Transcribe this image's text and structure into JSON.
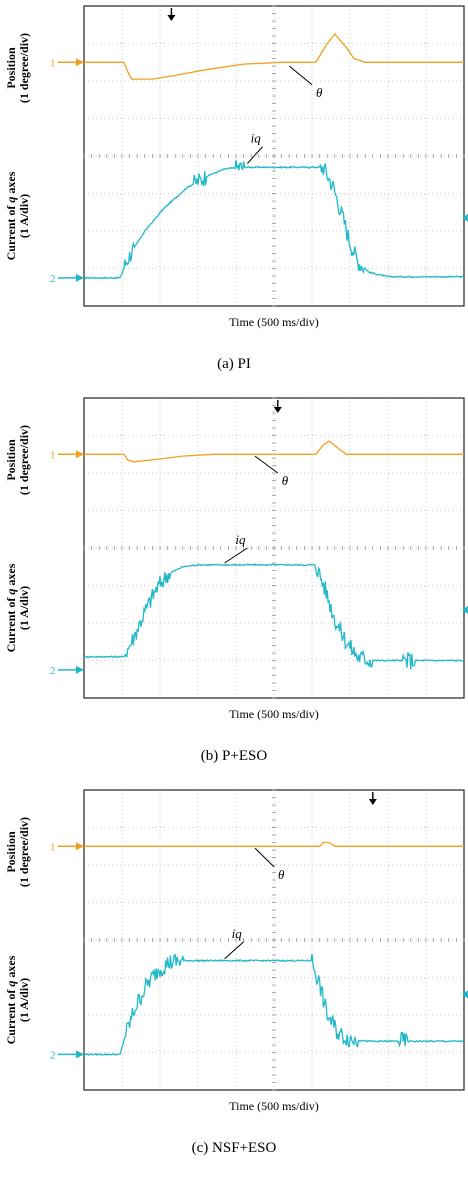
{
  "figure": {
    "chart_data": [
      {
        "type": "line",
        "caption": "(a)   PI",
        "xlabel": "Time (500 ms/div)",
        "ylabel_top": [
          "Position",
          "(1 degree/div)"
        ],
        "ylabel_bottom": [
          "Current of q axes",
          "(1 A/div)"
        ],
        "x_range_div": [
          0,
          10
        ],
        "y_range_div": [
          0,
          8
        ],
        "grid": true,
        "channel_markers": [
          "1",
          "2"
        ],
        "series": [
          {
            "name": "θ",
            "color": "#f0a020",
            "ch_level": 6.5,
            "points": [
              [
                0,
                6.5
              ],
              [
                1.05,
                6.5
              ],
              [
                1.15,
                6.25
              ],
              [
                1.25,
                6.05
              ],
              [
                1.8,
                6.05
              ],
              [
                2.4,
                6.15
              ],
              [
                3.2,
                6.3
              ],
              [
                4.2,
                6.45
              ],
              [
                5.2,
                6.5
              ],
              [
                6.1,
                6.5
              ],
              [
                6.4,
                7.0
              ],
              [
                6.6,
                7.25
              ],
              [
                6.9,
                6.9
              ],
              [
                7.1,
                6.6
              ],
              [
                7.4,
                6.5
              ],
              [
                10,
                6.5
              ]
            ]
          },
          {
            "name": "iq",
            "color": "#20b8c8",
            "ch_level": 0.75,
            "points": [
              [
                0,
                0.75
              ],
              [
                0.95,
                0.75
              ],
              [
                1.05,
                1.05
              ],
              [
                1.2,
                1.35
              ],
              [
                1.6,
                2.0
              ],
              [
                2.1,
                2.6
              ],
              [
                2.7,
                3.15
              ],
              [
                3.2,
                3.45
              ],
              [
                3.7,
                3.65
              ],
              [
                4.1,
                3.7
              ],
              [
                6.3,
                3.7
              ],
              [
                6.55,
                3.2
              ],
              [
                6.8,
                2.4
              ],
              [
                7.0,
                1.7
              ],
              [
                7.2,
                1.2
              ],
              [
                7.5,
                0.9
              ],
              [
                8.0,
                0.78
              ],
              [
                10,
                0.78
              ]
            ]
          }
        ],
        "annotations": [
          "θ",
          "iq"
        ]
      },
      {
        "type": "line",
        "caption": "(b)   P+ESO",
        "xlabel": "Time (500 ms/div)",
        "ylabel_top": [
          "Position",
          "(1 degree/div)"
        ],
        "ylabel_bottom": [
          "Current of q axes",
          "(1 A/div)"
        ],
        "x_range_div": [
          0,
          10
        ],
        "y_range_div": [
          0,
          8
        ],
        "grid": true,
        "channel_markers": [
          "1",
          "2"
        ],
        "series": [
          {
            "name": "θ",
            "color": "#f0a020",
            "ch_level": 6.5,
            "points": [
              [
                0,
                6.5
              ],
              [
                1.05,
                6.5
              ],
              [
                1.15,
                6.35
              ],
              [
                1.3,
                6.3
              ],
              [
                1.8,
                6.35
              ],
              [
                2.6,
                6.45
              ],
              [
                3.4,
                6.5
              ],
              [
                6.1,
                6.5
              ],
              [
                6.3,
                6.75
              ],
              [
                6.45,
                6.85
              ],
              [
                6.7,
                6.65
              ],
              [
                6.9,
                6.5
              ],
              [
                10,
                6.5
              ]
            ]
          },
          {
            "name": "iq",
            "color": "#20b8c8",
            "ch_level": 0.75,
            "points": [
              [
                0,
                1.1
              ],
              [
                1.05,
                1.1
              ],
              [
                1.3,
                1.6
              ],
              [
                1.6,
                2.3
              ],
              [
                1.9,
                2.9
              ],
              [
                2.2,
                3.3
              ],
              [
                2.6,
                3.5
              ],
              [
                3.0,
                3.55
              ],
              [
                6.1,
                3.55
              ],
              [
                6.35,
                2.9
              ],
              [
                6.6,
                2.1
              ],
              [
                6.9,
                1.5
              ],
              [
                7.2,
                1.1
              ],
              [
                7.6,
                1.0
              ],
              [
                10,
                1.0
              ]
            ]
          }
        ],
        "annotations": [
          "θ",
          "iq"
        ]
      },
      {
        "type": "line",
        "caption": "(c)   NSF+ESO",
        "xlabel": "Time (500 ms/div)",
        "ylabel_top": [
          "Position",
          "(1 degree/div)"
        ],
        "ylabel_bottom": [
          "Current of q axes",
          "(1 A/div)"
        ],
        "x_range_div": [
          0,
          10
        ],
        "y_range_div": [
          0,
          8
        ],
        "grid": true,
        "channel_markers": [
          "1",
          "2"
        ],
        "series": [
          {
            "name": "θ",
            "color": "#f0a020",
            "ch_level": 6.5,
            "points": [
              [
                0,
                6.5
              ],
              [
                6.2,
                6.5
              ],
              [
                6.3,
                6.6
              ],
              [
                6.45,
                6.6
              ],
              [
                6.6,
                6.5
              ],
              [
                10,
                6.5
              ]
            ]
          },
          {
            "name": "iq",
            "color": "#20b8c8",
            "ch_level": 0.95,
            "points": [
              [
                0,
                0.95
              ],
              [
                0.95,
                0.95
              ],
              [
                1.1,
                1.5
              ],
              [
                1.35,
                2.2
              ],
              [
                1.65,
                2.8
              ],
              [
                1.95,
                3.2
              ],
              [
                2.25,
                3.4
              ],
              [
                2.6,
                3.45
              ],
              [
                6.0,
                3.45
              ],
              [
                6.2,
                2.8
              ],
              [
                6.4,
                2.0
              ],
              [
                6.7,
                1.5
              ],
              [
                7.0,
                1.35
              ],
              [
                7.5,
                1.3
              ],
              [
                10,
                1.3
              ]
            ]
          }
        ],
        "annotations": [
          "θ",
          "iq"
        ]
      }
    ]
  }
}
